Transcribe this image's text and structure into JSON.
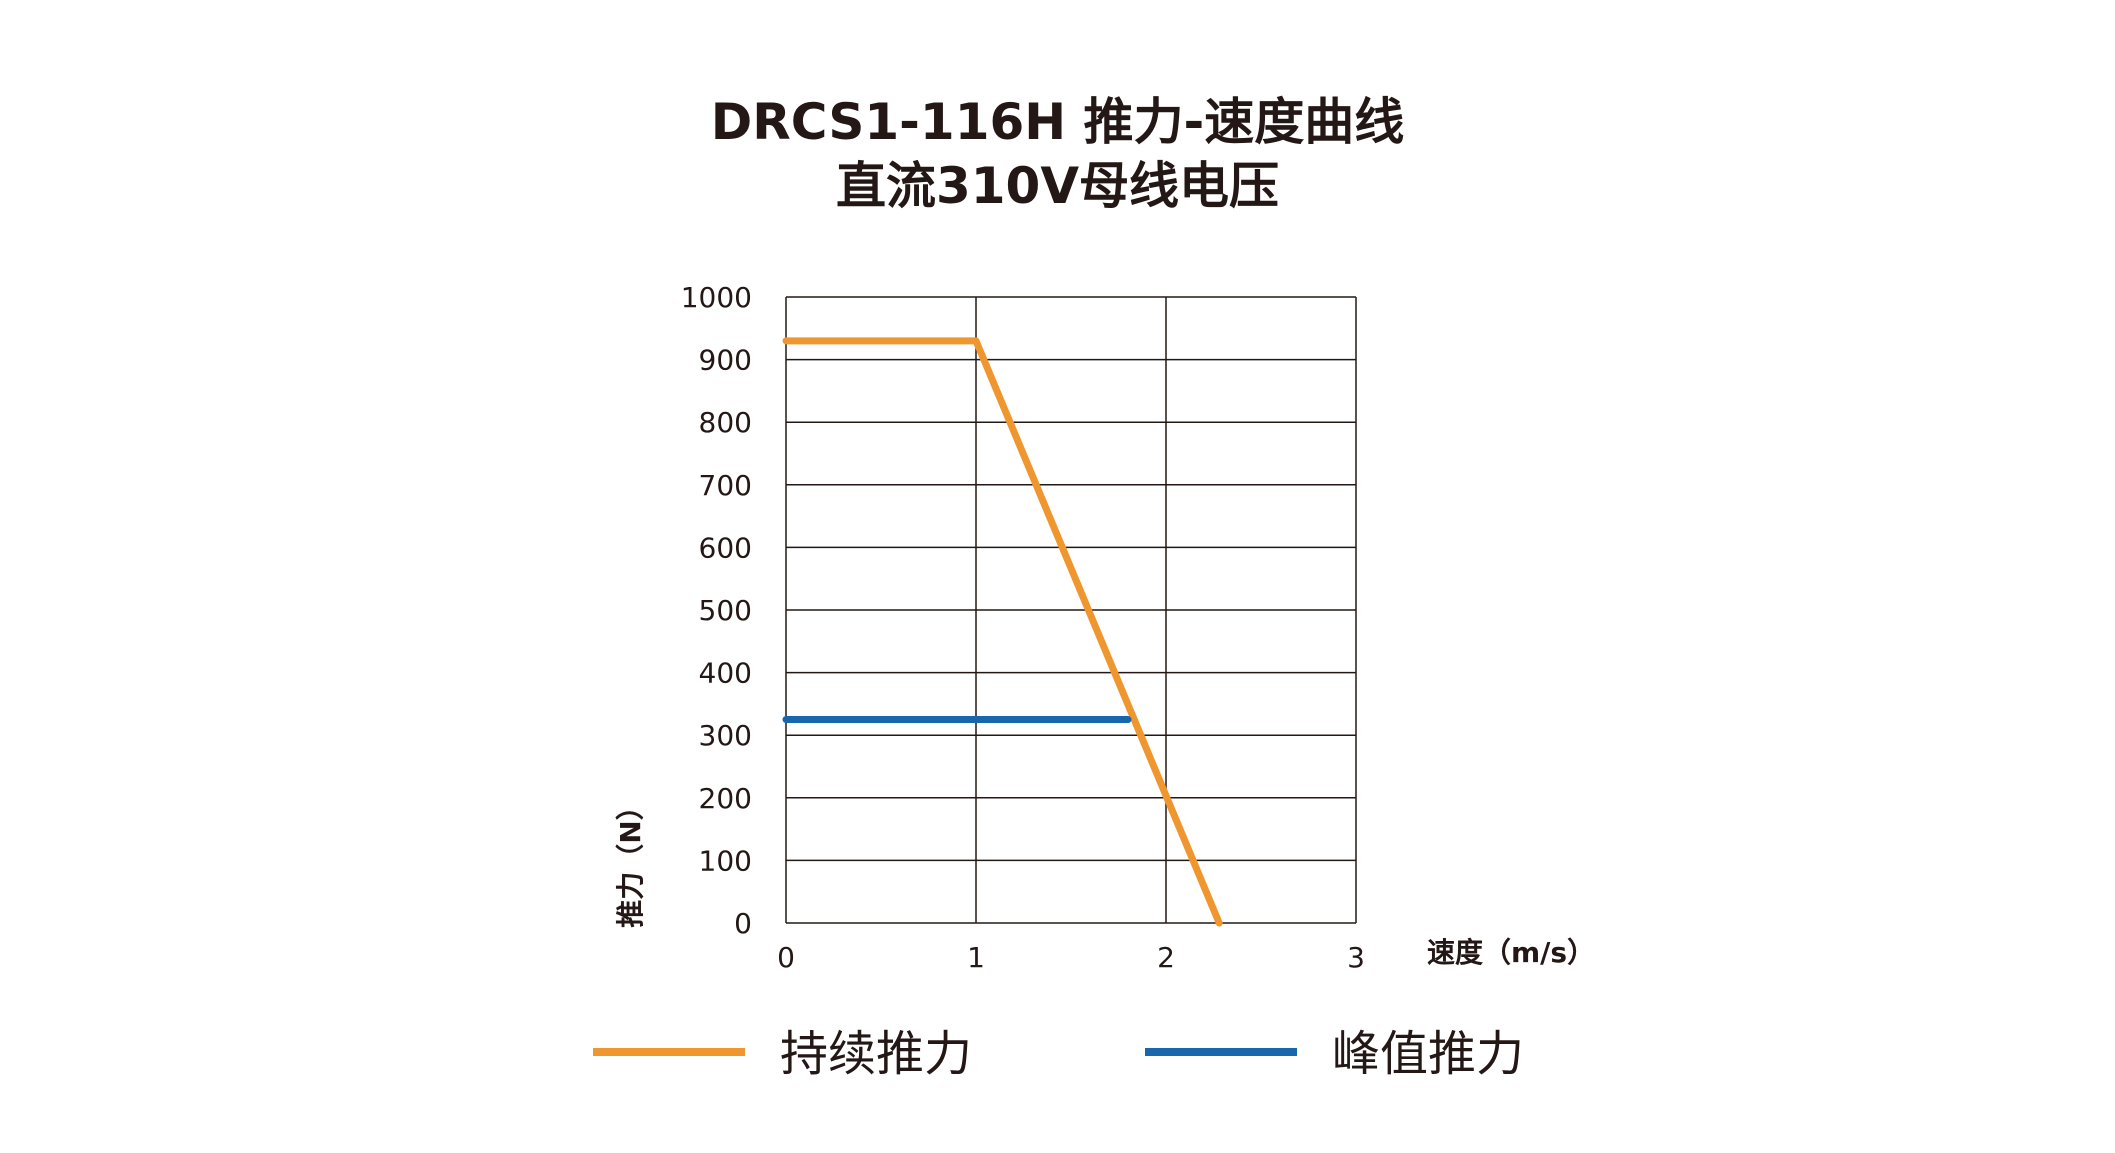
{
  "title": {
    "line1": "DRCS1-116H 推力-速度曲线",
    "line2": "直流310V母线电压"
  },
  "colors": {
    "continuous": "#F0962E",
    "peak": "#1866AC",
    "grid": "#231815"
  },
  "chart_data": {
    "type": "line",
    "xlabel": "速度（m/s）",
    "ylabel": "推力（N）",
    "xlim": [
      0,
      3
    ],
    "ylim": [
      0,
      1000
    ],
    "x_ticks": [
      "0",
      "1",
      "2",
      "3"
    ],
    "y_ticks": [
      "0",
      "100",
      "200",
      "300",
      "400",
      "500",
      "600",
      "700",
      "800",
      "900",
      "1000"
    ],
    "grid": true,
    "legend": "bottom",
    "series": [
      {
        "name": "持续推力",
        "x": [
          0,
          1,
          2.28
        ],
        "y": [
          930,
          930,
          0
        ]
      },
      {
        "name": "峰值推力",
        "x": [
          0,
          1.8
        ],
        "y": [
          325,
          325
        ]
      }
    ]
  }
}
